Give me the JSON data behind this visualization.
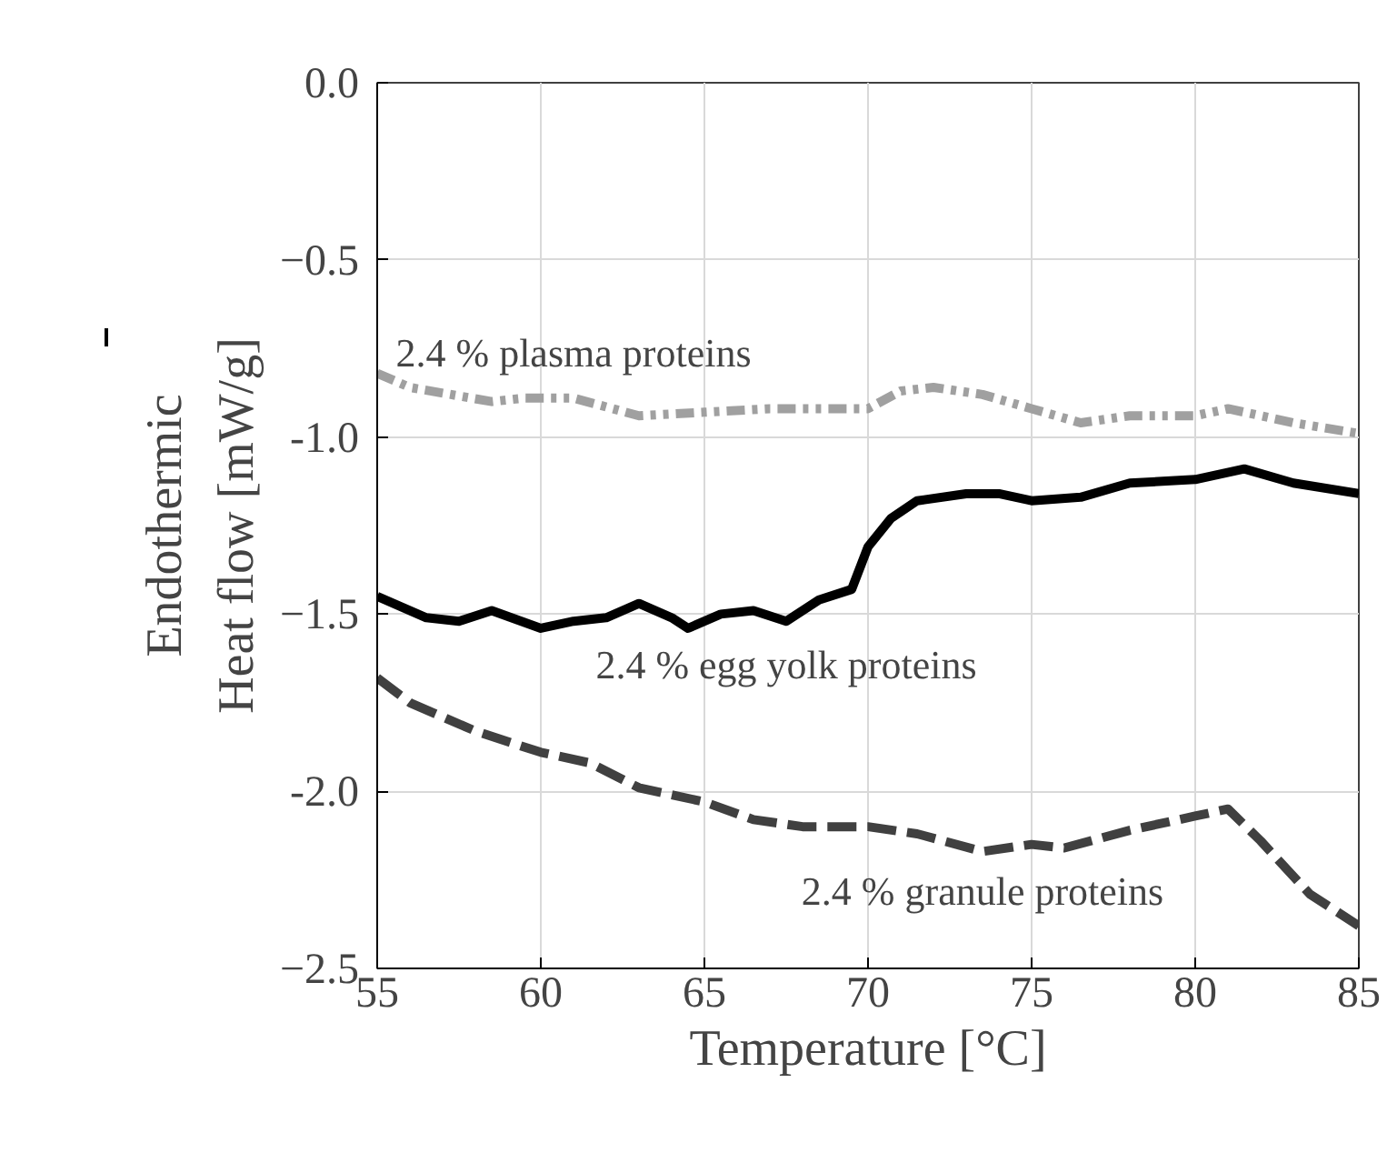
{
  "chart_data": {
    "type": "line",
    "xlabel": "Temperature [°C]",
    "ylabel": "Heat flow [mW/g]",
    "xlim": [
      55,
      85
    ],
    "xticks": [
      55,
      60,
      65,
      70,
      75,
      80,
      85
    ],
    "ylim": [
      -2.5,
      0
    ],
    "yticks": [
      {
        "value": 0,
        "label": "0.0"
      },
      -0.5,
      {
        "value": -1,
        "label": "-1.0"
      },
      -1.5,
      {
        "value": -2,
        "label": "-2.0"
      },
      -2.5
    ],
    "grid": true,
    "series": [
      {
        "name": "2.4 % plasma proteins",
        "color": "#a0a0a0",
        "line_style": "dashdotdot",
        "x": [
          55,
          56,
          58.5,
          59.5,
          61,
          63,
          65,
          67,
          69.5,
          70,
          71,
          72,
          73.5,
          75,
          76.5,
          78,
          80,
          81,
          83,
          85
        ],
        "values": [
          -0.82,
          -0.86,
          -0.9,
          -0.89,
          -0.89,
          -0.94,
          -0.93,
          -0.92,
          -0.92,
          -0.92,
          -0.87,
          -0.86,
          -0.88,
          -0.92,
          -0.96,
          -0.94,
          -0.94,
          -0.92,
          -0.96,
          -0.99
        ]
      },
      {
        "name": "2.4 % egg yolk proteins",
        "color": "#000000",
        "line_style": "solid",
        "x": [
          55,
          56.5,
          57.5,
          58.5,
          60,
          61,
          62,
          63,
          64,
          64.5,
          65.5,
          66.5,
          67.5,
          68.5,
          69.5,
          70,
          70.7,
          71.5,
          73,
          74,
          75,
          76.5,
          78,
          80,
          81.5,
          83,
          85
        ],
        "values": [
          -1.45,
          -1.51,
          -1.52,
          -1.49,
          -1.54,
          -1.52,
          -1.51,
          -1.47,
          -1.51,
          -1.54,
          -1.5,
          -1.49,
          -1.52,
          -1.46,
          -1.43,
          -1.31,
          -1.23,
          -1.18,
          -1.16,
          -1.16,
          -1.18,
          -1.17,
          -1.13,
          -1.12,
          -1.09,
          -1.13,
          -1.16
        ]
      },
      {
        "name": "2.4 % granule proteins",
        "color": "#404040",
        "line_style": "dashed",
        "x": [
          55,
          56,
          58,
          60,
          61.5,
          63,
          65,
          66.5,
          68,
          70,
          71.5,
          73.5,
          75,
          76,
          78,
          80,
          81,
          82,
          83.5,
          85
        ],
        "values": [
          -1.68,
          -1.75,
          -1.83,
          -1.89,
          -1.92,
          -1.99,
          -2.03,
          -2.08,
          -2.1,
          -2.1,
          -2.12,
          -2.17,
          -2.15,
          -2.16,
          -2.11,
          -2.07,
          -2.05,
          -2.14,
          -2.29,
          -2.38
        ]
      }
    ],
    "annotations": [
      "Endothermic"
    ]
  }
}
